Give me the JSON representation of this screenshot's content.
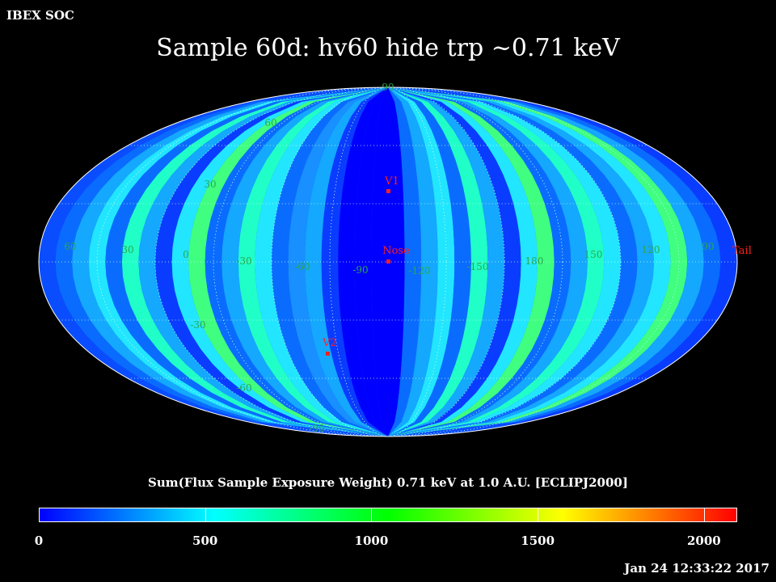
{
  "header": {
    "corner_label": "IBEX SOC",
    "title": "Sample 60d: hv60 hide trp ~0.71 keV"
  },
  "map": {
    "projection": "mollweide",
    "frame": "ECLIPJ2000",
    "latitude_labels": [
      "90",
      "60",
      "30",
      "-30",
      "-60",
      "-90"
    ],
    "longitude_labels": [
      "60",
      "30",
      "0",
      "-30",
      "-60",
      "-90",
      "-120",
      "-150",
      "180",
      "150",
      "120",
      "90"
    ],
    "markers": [
      {
        "label": "V1",
        "color": "#ff2020"
      },
      {
        "label": "Nose",
        "color": "#ff2020"
      },
      {
        "label": "V2",
        "color": "#ff2020"
      },
      {
        "label": "Tail",
        "color": "#ff2020"
      }
    ]
  },
  "colorbar": {
    "title": "Sum(Flux Sample Exposure Weight)  0.71 keV at 1.0 A.U. [ECLIPJ2000]",
    "min": 0,
    "max": 2100,
    "ticks": [
      "0",
      "500",
      "1000",
      "1500",
      "2000"
    ],
    "colormap": [
      "#0000ff",
      "#00ffff",
      "#00ff00",
      "#ffff00",
      "#ff0000"
    ]
  },
  "footer": {
    "timestamp": "Jan 24 12:33:22 2017"
  }
}
